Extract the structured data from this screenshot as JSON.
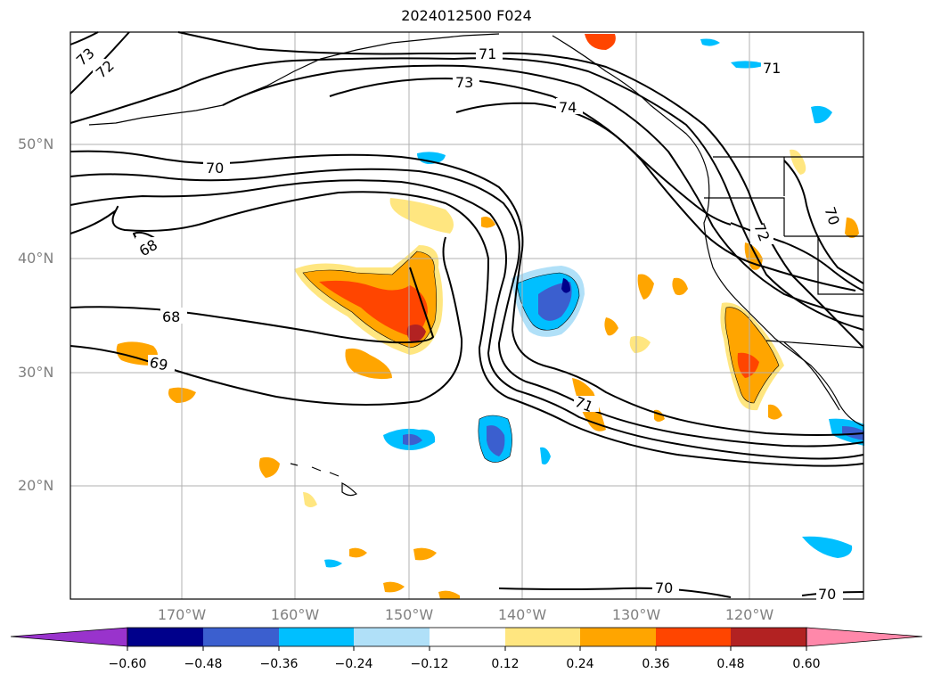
{
  "title": "2024012500 F024",
  "lat_labels": [
    "50°N",
    "40°N",
    "30°N",
    "20°N"
  ],
  "lon_labels": [
    "170°W",
    "160°W",
    "150°W",
    "140°W",
    "130°W",
    "120°W"
  ],
  "contour_labels": [
    "73",
    "72",
    "71",
    "71",
    "73",
    "74",
    "70",
    "68",
    "68",
    "69",
    "71",
    "72",
    "70",
    "70",
    "70"
  ],
  "colorbar": {
    "ticks": [
      "−0.60",
      "−0.48",
      "−0.36",
      "−0.24",
      "−0.12",
      "0.12",
      "0.24",
      "0.36",
      "0.48",
      "0.60"
    ],
    "colors": [
      "#9933cc",
      "#00008b",
      "#3b5fcf",
      "#00bfff",
      "#b0e0f8",
      "#ffffff",
      "#ffe680",
      "#ffa500",
      "#ff4500",
      "#b22222",
      "#ff88aa"
    ]
  }
}
